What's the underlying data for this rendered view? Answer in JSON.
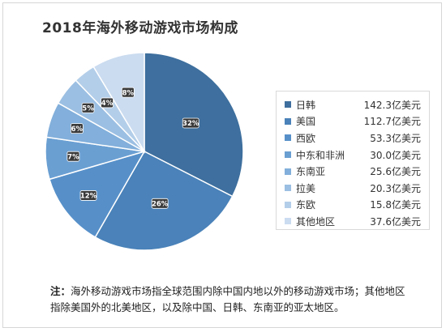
{
  "title": "2018年海外移动游戏市场构成",
  "chart_data": {
    "type": "pie",
    "title": "2018年海外移动游戏市场构成",
    "slices": [
      {
        "label": "日韩",
        "value": 142.3,
        "unit": "亿美元",
        "percent_label": "32%",
        "color": "#3e6f9e"
      },
      {
        "label": "美国",
        "value": 112.7,
        "unit": "亿美元",
        "percent_label": "26%",
        "color": "#4a82b9"
      },
      {
        "label": "西欧",
        "value": 53.3,
        "unit": "亿美元",
        "percent_label": "12%",
        "color": "#5790c9"
      },
      {
        "label": "中东和非洲",
        "value": 30.0,
        "unit": "亿美元",
        "percent_label": "7%",
        "color": "#6a9fd2"
      },
      {
        "label": "东南亚",
        "value": 25.6,
        "unit": "亿美元",
        "percent_label": "6%",
        "color": "#82afdb"
      },
      {
        "label": "拉美",
        "value": 20.3,
        "unit": "亿美元",
        "percent_label": "5%",
        "color": "#9bbfe2"
      },
      {
        "label": "东欧",
        "value": 15.8,
        "unit": "亿美元",
        "percent_label": "4%",
        "color": "#b3cee9"
      },
      {
        "label": "其他地区",
        "value": 37.6,
        "unit": "亿美元",
        "percent_label": "8%",
        "color": "#cbdcf0"
      }
    ],
    "legend_position": "right"
  },
  "legend": [
    {
      "name": "日韩",
      "value": "142.3亿美元"
    },
    {
      "name": "美国",
      "value": "112.7亿美元"
    },
    {
      "name": "西欧",
      "value": "53.3亿美元"
    },
    {
      "name": "中东和非洲",
      "value": "30.0亿美元"
    },
    {
      "name": "东南亚",
      "value": "25.6亿美元"
    },
    {
      "name": "拉美",
      "value": "20.3亿美元"
    },
    {
      "name": "东欧",
      "value": "15.8亿美元"
    },
    {
      "name": "其他地区",
      "value": "37.6亿美元"
    }
  ],
  "note": {
    "label": "注：",
    "text": "海外移动游戏市场指全球范围内除中国内地以外的移动游戏市场；其他地区指除美国外的北美地区，以及除中国、日韩、东南亚的亚太地区。"
  }
}
